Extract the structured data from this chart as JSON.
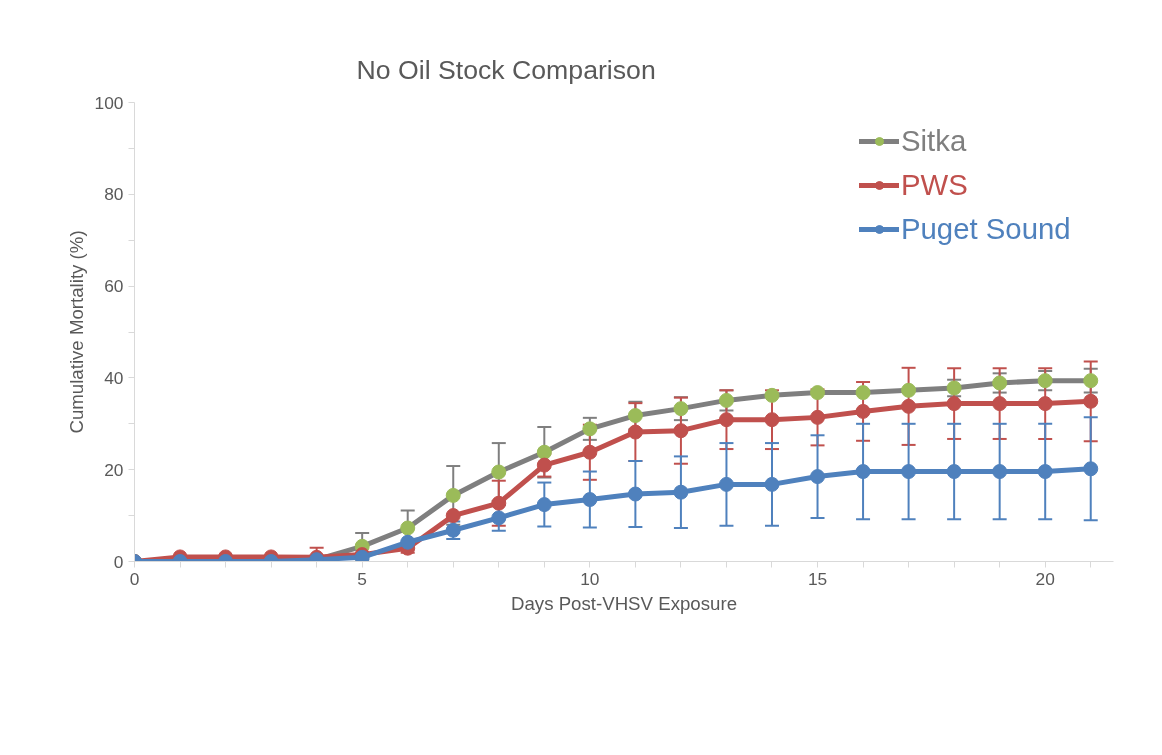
{
  "chart_data": {
    "type": "line",
    "title": "No Oil Stock Comparison",
    "xlabel": "Days Post-VHSV Exposure",
    "ylabel": "Cumulative Mortality (%)",
    "x": [
      0,
      1,
      2,
      3,
      4,
      5,
      6,
      7,
      8,
      9,
      10,
      11,
      12,
      13,
      14,
      15,
      16,
      17,
      18,
      19,
      20,
      21
    ],
    "xlim": [
      0,
      21.5
    ],
    "xticks": [
      0,
      {
        "value": 1,
        "label": null
      },
      {
        "value": 2,
        "label": null
      },
      {
        "value": 3,
        "label": null
      },
      {
        "value": 4,
        "label": null
      },
      5,
      {
        "value": 6,
        "label": null
      },
      {
        "value": 7,
        "label": null
      },
      {
        "value": 8,
        "label": null
      },
      {
        "value": 9,
        "label": null
      },
      10,
      {
        "value": 11,
        "label": null
      },
      {
        "value": 12,
        "label": null
      },
      {
        "value": 13,
        "label": null
      },
      {
        "value": 14,
        "label": null
      },
      15,
      {
        "value": 16,
        "label": null
      },
      {
        "value": 17,
        "label": null
      },
      {
        "value": 18,
        "label": null
      },
      {
        "value": 19,
        "label": null
      },
      20,
      {
        "value": 21,
        "label": null
      }
    ],
    "ylim": [
      0,
      100
    ],
    "yticks": [
      0,
      {
        "value": 10,
        "label": null
      },
      20,
      {
        "value": 30,
        "label": null
      },
      40,
      {
        "value": 50,
        "label": null
      },
      60,
      {
        "value": 70,
        "label": null
      },
      80,
      {
        "value": 90,
        "label": null
      },
      100
    ],
    "grid": false,
    "legend": "top right",
    "marker": "circle",
    "line_style": "solid",
    "series": [
      {
        "name": "Sitka",
        "color": "#7f7f7f",
        "colors": [
          "#9bbb59",
          "#9bbb59",
          "#9bbb59",
          "#9bbb59",
          "#9bbb59",
          "#9bbb59",
          "#9bbb59",
          "#9bbb59",
          "#9bbb59",
          "#9bbb59",
          "#9bbb59",
          "#9bbb59",
          "#9bbb59",
          "#9bbb59",
          "#9bbb59",
          "#9bbb59",
          "#9bbb59",
          "#9bbb59",
          "#9bbb59",
          "#9bbb59",
          "#9bbb59",
          "#9bbb59"
        ],
        "values": [
          0,
          null,
          null,
          null,
          0.4,
          3.3,
          7.3,
          14.4,
          19.5,
          23.8,
          28.9,
          31.8,
          33.3,
          35.1,
          36.2,
          36.8,
          36.8,
          37.3,
          37.8,
          38.9,
          39.4,
          39.4
        ],
        "errors": [
          null,
          null,
          null,
          null,
          null,
          2.9,
          3.8,
          6.4,
          6.3,
          5.5,
          2.4,
          3,
          2.5,
          2.2,
          null,
          null,
          null,
          null,
          1.8,
          2.1,
          2.1,
          2.6
        ]
      },
      {
        "name": "PWS",
        "color": "#c0504d",
        "values": [
          0,
          1,
          1,
          1,
          0.9,
          1.5,
          2.9,
          10,
          12.7,
          21,
          23.8,
          28.2,
          28.5,
          30.9,
          30.9,
          31.4,
          32.7,
          33.8,
          34.4,
          34.4,
          34.4,
          34.9
        ],
        "errors": [
          null,
          null,
          null,
          null,
          2.1,
          null,
          1,
          null,
          4.9,
          2.5,
          6,
          6.3,
          7.2,
          6.4,
          6.4,
          6.1,
          6.4,
          8.4,
          7.7,
          7.7,
          7.7,
          8.7
        ]
      },
      {
        "name": "Puget Sound",
        "color": "#4f81bd",
        "values": [
          0,
          0,
          0,
          0,
          0.4,
          0.9,
          4.2,
          6.8,
          9.5,
          12.4,
          13.5,
          14.7,
          15.1,
          16.8,
          16.8,
          18.5,
          19.6,
          19.6,
          19.6,
          19.6,
          19.6,
          20.2
        ],
        "errors": [
          null,
          null,
          null,
          null,
          null,
          null,
          null,
          1.9,
          2.8,
          4.8,
          6.1,
          7.2,
          7.8,
          9,
          9,
          9,
          10.4,
          10.4,
          10.4,
          10.4,
          10.4,
          11.2
        ]
      }
    ]
  }
}
